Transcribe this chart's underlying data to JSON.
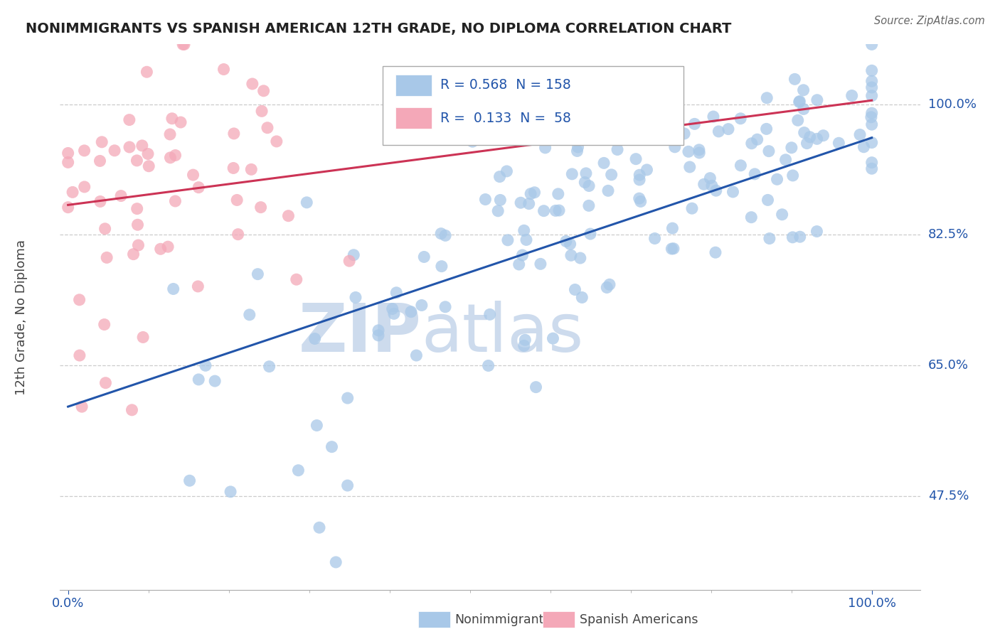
{
  "title": "NONIMMIGRANTS VS SPANISH AMERICAN 12TH GRADE, NO DIPLOMA CORRELATION CHART",
  "source": "Source: ZipAtlas.com",
  "ylabel": "12th Grade, No Diploma",
  "legend_labels": [
    "Nonimmigrants",
    "Spanish Americans"
  ],
  "r_values": [
    0.568,
    0.133
  ],
  "n_values": [
    158,
    58
  ],
  "blue_color": "#a8c8e8",
  "pink_color": "#f4a8b8",
  "blue_line_color": "#2255aa",
  "pink_line_color": "#cc3355",
  "ytick_labels": [
    "100.0%",
    "82.5%",
    "65.0%",
    "47.5%"
  ],
  "ytick_values": [
    1.0,
    0.825,
    0.65,
    0.475
  ],
  "xtick_labels": [
    "0.0%",
    "100.0%"
  ],
  "watermark_zip": "ZIP",
  "watermark_atlas": "atlas",
  "background_color": "#ffffff",
  "title_color": "#222222",
  "tick_label_color": "#2255aa",
  "legend_text_color": "#222222",
  "grid_color": "#cccccc",
  "seed": 42,
  "blue_line_x0": 0.0,
  "blue_line_y0": 0.595,
  "blue_line_x1": 1.0,
  "blue_line_y1": 0.955,
  "pink_line_x0": 0.0,
  "pink_line_y0": 0.865,
  "pink_line_x1": 1.0,
  "pink_line_y1": 1.005,
  "xmin": 0.0,
  "xmax": 1.0,
  "ymin": 0.35,
  "ymax": 1.08
}
